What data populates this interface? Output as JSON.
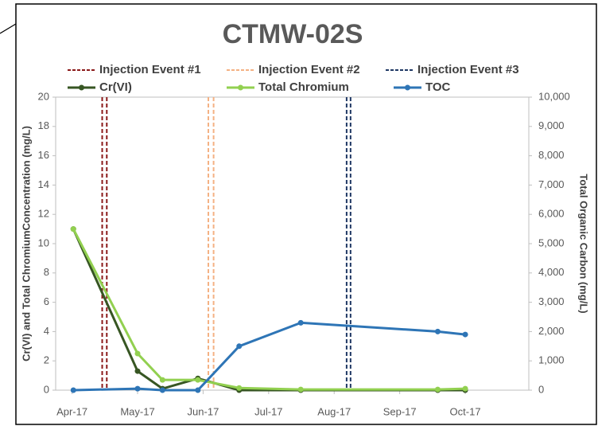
{
  "chart_data": {
    "type": "line",
    "title": "CTMW-02S",
    "y_label": "Cr(VI) and Total ChromiumConcentration (mg/L)",
    "y2_label": "Total Organic Carbon (mg/L)",
    "xlim": [
      -0.25,
      6.97
    ],
    "xticks": [
      {
        "value": 0,
        "label": "Apr-17"
      },
      {
        "value": 1,
        "label": "May-17"
      },
      {
        "value": 2,
        "label": "Jun-17"
      },
      {
        "value": 3,
        "label": "Jul-17"
      },
      {
        "value": 4,
        "label": "Aug-17"
      },
      {
        "value": 5,
        "label": "Sep-17"
      },
      {
        "value": 6,
        "label": "Oct-17"
      }
    ],
    "ylim": [
      0,
      20
    ],
    "yticks": [
      0,
      2,
      4,
      6,
      8,
      10,
      12,
      14,
      16,
      18,
      20
    ],
    "y2lim": [
      0,
      10000
    ],
    "y2ticks": [
      0,
      {
        "value": 1000,
        "label": "1,000"
      },
      {
        "value": 2000,
        "label": "2,000"
      },
      {
        "value": 3000,
        "label": "3,000"
      },
      {
        "value": 4000,
        "label": "4,000"
      },
      {
        "value": 5000,
        "label": "5,000"
      },
      {
        "value": 6000,
        "label": "6,000"
      },
      {
        "value": 7000,
        "label": "7,000"
      },
      {
        "value": 8000,
        "label": "8,000"
      },
      {
        "value": 9000,
        "label": "9,000"
      },
      {
        "value": 10000,
        "label": "10,000"
      }
    ],
    "events": [
      {
        "name": "Injection Event #1",
        "color": "#8b1a1a",
        "x": [
          0.46,
          0.53
        ]
      },
      {
        "name": "Injection Event #2",
        "color": "#f4b183",
        "x": [
          2.08,
          2.16
        ]
      },
      {
        "name": "Injection Event #3",
        "color": "#1f3864",
        "x": [
          4.19,
          4.25
        ]
      }
    ],
    "series": [
      {
        "name": "Cr(VI)",
        "color": "#375623",
        "x": [
          0.02,
          1.0,
          1.38,
          1.92,
          2.55,
          3.49,
          5.58,
          6.0
        ],
        "values": [
          11,
          1.3,
          0.1,
          0.8,
          0,
          0,
          0,
          0
        ]
      },
      {
        "name": "Total Chromium",
        "color": "#92d050",
        "x": [
          0.02,
          1.0,
          1.38,
          1.92,
          2.55,
          3.49,
          5.58,
          6.0
        ],
        "values": [
          11,
          2.5,
          0.7,
          0.7,
          0.15,
          0.05,
          0.05,
          0.1
        ]
      },
      {
        "name": "TOC",
        "color": "#2e75b6",
        "axis": "y2",
        "x": [
          0.02,
          1.0,
          1.38,
          1.92,
          2.55,
          3.49,
          5.58,
          6.0
        ],
        "values": [
          0,
          50,
          0,
          0,
          1500,
          2300,
          2000,
          1900
        ]
      }
    ]
  }
}
